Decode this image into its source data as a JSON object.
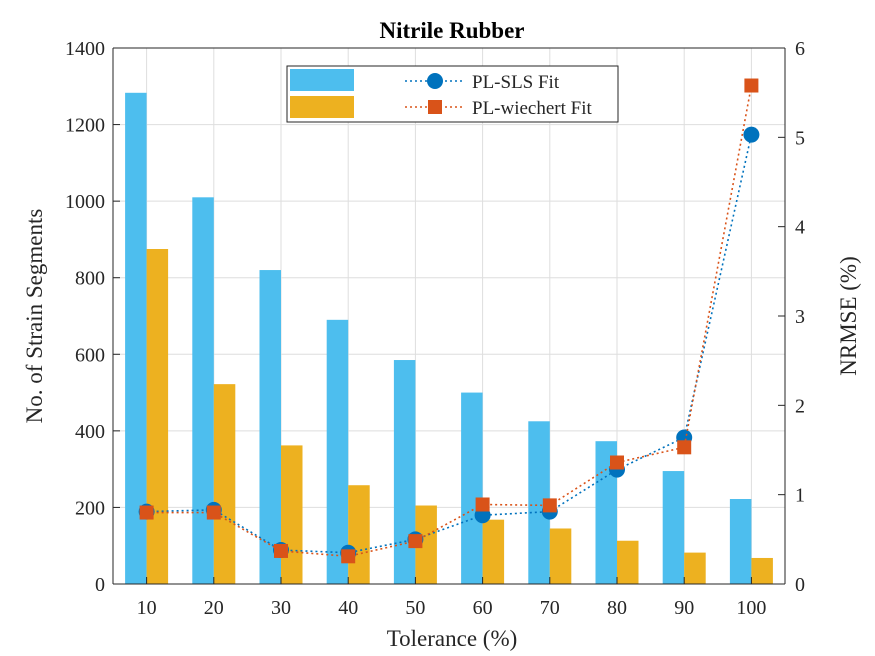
{
  "chart_data": {
    "type": "bar",
    "title": "Nitrile Rubber",
    "xlabel": "Tolerance (%)",
    "ylabel": "No. of Strain Segments",
    "y2label": "NRMSE (%)",
    "categories": [
      "10",
      "20",
      "30",
      "40",
      "50",
      "60",
      "70",
      "80",
      "90",
      "100"
    ],
    "ylim": [
      0,
      1400
    ],
    "y_ticks": [
      "0",
      "200",
      "400",
      "600",
      "800",
      "1000",
      "1200",
      "1400"
    ],
    "y2lim": [
      0,
      6
    ],
    "y2_ticks": [
      "0",
      "1",
      "2",
      "3",
      "4",
      "5",
      "6"
    ],
    "grid": true,
    "legend_position": "top-center",
    "bar_series": [
      {
        "color": "#4DBEEE",
        "values": [
          1283,
          1010,
          820,
          690,
          585,
          500,
          425,
          373,
          295,
          222
        ]
      },
      {
        "color": "#EDB120",
        "values": [
          875,
          522,
          362,
          258,
          205,
          168,
          145,
          113,
          82,
          68
        ]
      }
    ],
    "line_series": [
      {
        "name": "PL-SLS Fit",
        "color": "#0072BD",
        "marker": "circle",
        "axis": "right",
        "values": [
          0.81,
          0.83,
          0.38,
          0.35,
          0.5,
          0.77,
          0.81,
          1.28,
          1.64,
          5.03
        ]
      },
      {
        "name": "PL-wiechert Fit",
        "color": "#D95319",
        "marker": "square",
        "axis": "right",
        "values": [
          0.8,
          0.8,
          0.37,
          0.31,
          0.48,
          0.89,
          0.88,
          1.36,
          1.53,
          5.58
        ]
      }
    ]
  }
}
